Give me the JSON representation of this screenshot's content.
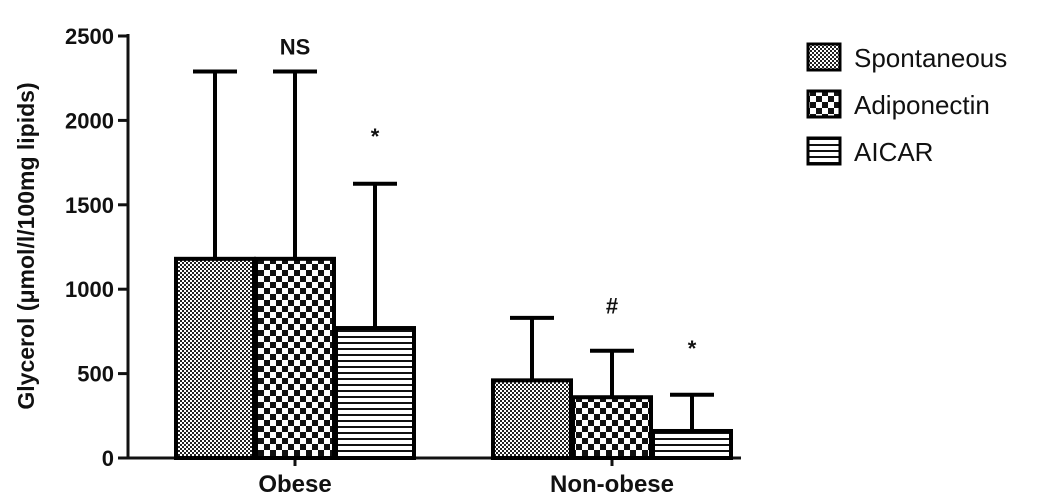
{
  "chart_data": {
    "type": "bar",
    "title": "",
    "xlabel": "",
    "ylabel": "Glycerol (μmol/l/100mg lipids)",
    "ylim": [
      0,
      2500
    ],
    "yticks": [
      "0",
      "500",
      "1000",
      "1500",
      "2000",
      "2500"
    ],
    "categories": [
      "Obese",
      "Non-obese"
    ],
    "series": [
      {
        "name": "Spontaneous",
        "values": [
          1180,
          460
        ],
        "errors": [
          1110,
          370
        ],
        "pattern": "fine-check"
      },
      {
        "name": "Adiponectin",
        "values": [
          1180,
          360
        ],
        "errors": [
          1110,
          275
        ],
        "pattern": "big-check"
      },
      {
        "name": "AICAR",
        "values": [
          770,
          160
        ],
        "errors": [
          855,
          215
        ],
        "pattern": "hstripes"
      }
    ],
    "annotations": [
      {
        "text": "NS",
        "category": 0,
        "series": 1,
        "at": 2390
      },
      {
        "text": "*",
        "category": 0,
        "series": 2,
        "at": 1860
      },
      {
        "text": "#",
        "category": 1,
        "series": 1,
        "at": 855
      },
      {
        "text": "*",
        "category": 1,
        "series": 2,
        "at": 605
      }
    ],
    "legend_position": "top-right",
    "grid": false
  }
}
